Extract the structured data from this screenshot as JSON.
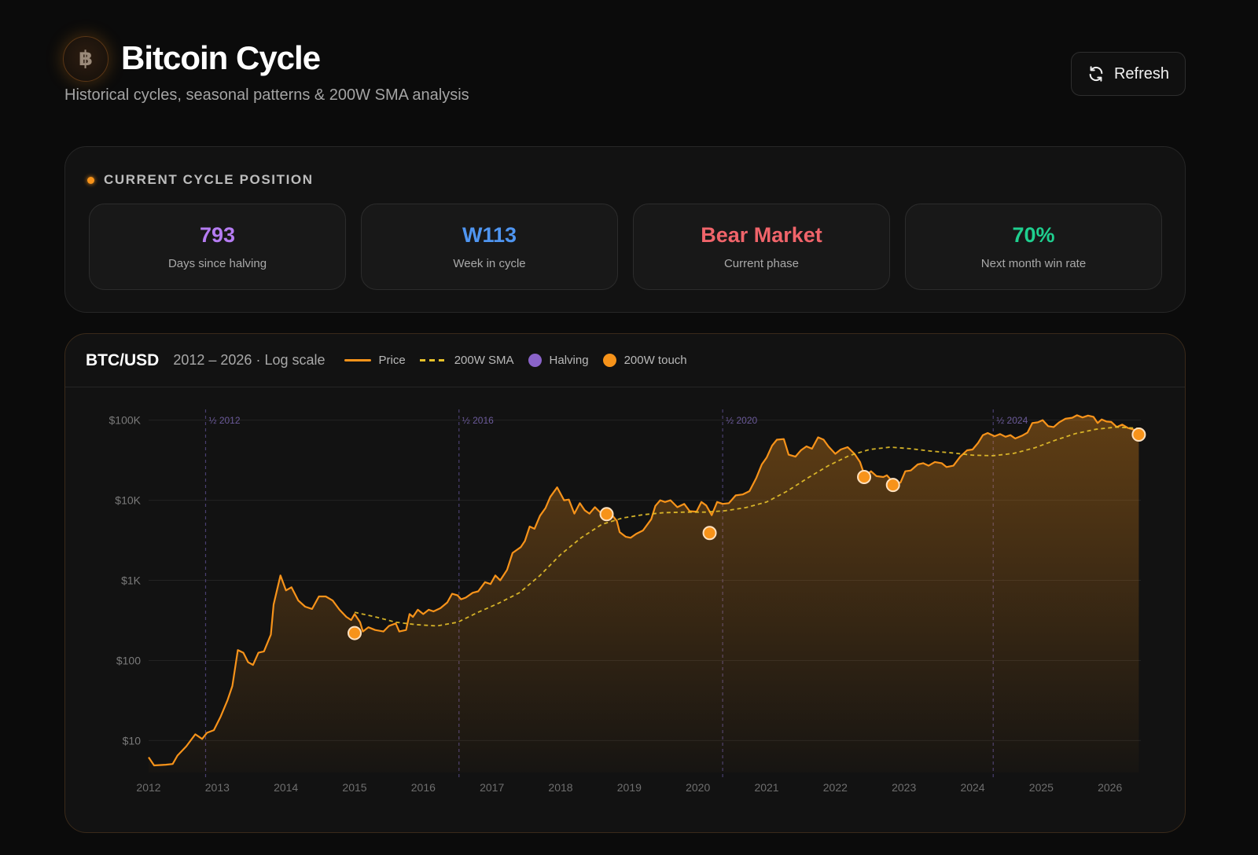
{
  "header": {
    "logo_glyph": "฿",
    "title": "Bitcoin Cycle",
    "subtitle": "Historical cycles, seasonal patterns & 200W SMA analysis",
    "refresh_label": "Refresh",
    "refresh_icon": "refresh-icon"
  },
  "cycle": {
    "title": "CURRENT CYCLE POSITION",
    "cards": [
      {
        "value": "793",
        "label": "Days since halving",
        "color": "#b57cf2"
      },
      {
        "value": "W113",
        "label": "Week in cycle",
        "color": "#4f95f0"
      },
      {
        "value": "Bear Market",
        "label": "Current phase",
        "color": "#f0646a"
      },
      {
        "value": "70%",
        "label": "Next month win rate",
        "color": "#1fcf8f"
      }
    ]
  },
  "chart_panel": {
    "pair": "BTC/USD",
    "range": "2012 – 2026 · Log scale",
    "legend": {
      "price": "Price",
      "sma": "200W SMA",
      "halving": "Halving",
      "touch": "200W touch"
    }
  },
  "colors": {
    "price": "#f7931a",
    "sma": "#e6c12a",
    "halving": "#8a63c9",
    "touch": "#f7931a"
  },
  "chart_data": {
    "type": "line",
    "title": "BTC/USD",
    "scale": "log",
    "grid": true,
    "legend_position": "top-left",
    "xlim": [
      2012.0,
      2026.45
    ],
    "ylim": [
      4,
      130000
    ],
    "x_ticks": [
      "2012",
      "2013",
      "2014",
      "2015",
      "2016",
      "2017",
      "2018",
      "2019",
      "2020",
      "2021",
      "2022",
      "2023",
      "2024",
      "2025",
      "2026"
    ],
    "y_ticks": [
      {
        "value": 100000,
        "label": "$100K"
      },
      {
        "value": 10000,
        "label": "$10K"
      },
      {
        "value": 1000,
        "label": "$1K"
      },
      {
        "value": 100,
        "label": "$100"
      },
      {
        "value": 10,
        "label": "$10"
      }
    ],
    "halvings": [
      {
        "x": 2012.83,
        "label": "½ 2012"
      },
      {
        "x": 2016.52,
        "label": "½ 2016"
      },
      {
        "x": 2020.36,
        "label": "½ 2020"
      },
      {
        "x": 2024.3,
        "label": "½ 2024"
      }
    ],
    "series": [
      {
        "name": "Price",
        "points": [
          [
            2012.0,
            6.2
          ],
          [
            2012.08,
            4.9
          ],
          [
            2012.25,
            5.0
          ],
          [
            2012.35,
            5.1
          ],
          [
            2012.42,
            6.5
          ],
          [
            2012.55,
            8.5
          ],
          [
            2012.68,
            12
          ],
          [
            2012.78,
            10.5
          ],
          [
            2012.85,
            12.5
          ],
          [
            2012.95,
            13.5
          ],
          [
            2013.05,
            20
          ],
          [
            2013.15,
            32
          ],
          [
            2013.22,
            48
          ],
          [
            2013.3,
            135
          ],
          [
            2013.38,
            125
          ],
          [
            2013.45,
            95
          ],
          [
            2013.52,
            88
          ],
          [
            2013.6,
            125
          ],
          [
            2013.68,
            130
          ],
          [
            2013.78,
            210
          ],
          [
            2013.82,
            500
          ],
          [
            2013.92,
            1150
          ],
          [
            2014.0,
            750
          ],
          [
            2014.08,
            820
          ],
          [
            2014.18,
            560
          ],
          [
            2014.28,
            470
          ],
          [
            2014.38,
            440
          ],
          [
            2014.48,
            630
          ],
          [
            2014.58,
            630
          ],
          [
            2014.68,
            560
          ],
          [
            2014.78,
            430
          ],
          [
            2014.88,
            350
          ],
          [
            2014.95,
            320
          ],
          [
            2015.0,
            380
          ],
          [
            2015.08,
            300
          ],
          [
            2015.12,
            230
          ],
          [
            2015.2,
            260
          ],
          [
            2015.3,
            240
          ],
          [
            2015.42,
            230
          ],
          [
            2015.5,
            270
          ],
          [
            2015.6,
            290
          ],
          [
            2015.65,
            230
          ],
          [
            2015.75,
            240
          ],
          [
            2015.8,
            380
          ],
          [
            2015.85,
            350
          ],
          [
            2015.92,
            430
          ],
          [
            2016.0,
            380
          ],
          [
            2016.08,
            430
          ],
          [
            2016.15,
            410
          ],
          [
            2016.25,
            450
          ],
          [
            2016.35,
            530
          ],
          [
            2016.42,
            680
          ],
          [
            2016.5,
            650
          ],
          [
            2016.55,
            580
          ],
          [
            2016.62,
            610
          ],
          [
            2016.72,
            700
          ],
          [
            2016.8,
            730
          ],
          [
            2016.9,
            950
          ],
          [
            2016.98,
            900
          ],
          [
            2017.05,
            1150
          ],
          [
            2017.12,
            1000
          ],
          [
            2017.22,
            1350
          ],
          [
            2017.3,
            2200
          ],
          [
            2017.42,
            2600
          ],
          [
            2017.48,
            3100
          ],
          [
            2017.55,
            4700
          ],
          [
            2017.62,
            4400
          ],
          [
            2017.7,
            6400
          ],
          [
            2017.78,
            8000
          ],
          [
            2017.85,
            11000
          ],
          [
            2017.95,
            14500
          ],
          [
            2018.05,
            10000
          ],
          [
            2018.12,
            10200
          ],
          [
            2018.2,
            6800
          ],
          [
            2018.28,
            9200
          ],
          [
            2018.35,
            7500
          ],
          [
            2018.42,
            6800
          ],
          [
            2018.5,
            8200
          ],
          [
            2018.58,
            7000
          ],
          [
            2018.65,
            6700
          ],
          [
            2018.75,
            6500
          ],
          [
            2018.82,
            5500
          ],
          [
            2018.86,
            4000
          ],
          [
            2018.95,
            3500
          ],
          [
            2019.02,
            3400
          ],
          [
            2019.1,
            3800
          ],
          [
            2019.2,
            4200
          ],
          [
            2019.32,
            5800
          ],
          [
            2019.38,
            8500
          ],
          [
            2019.45,
            10000
          ],
          [
            2019.52,
            9500
          ],
          [
            2019.6,
            10000
          ],
          [
            2019.7,
            8200
          ],
          [
            2019.8,
            9000
          ],
          [
            2019.88,
            7300
          ],
          [
            2019.98,
            7200
          ],
          [
            2020.05,
            9500
          ],
          [
            2020.12,
            8600
          ],
          [
            2020.2,
            6500
          ],
          [
            2020.28,
            9500
          ],
          [
            2020.36,
            9000
          ],
          [
            2020.45,
            9200
          ],
          [
            2020.55,
            11500
          ],
          [
            2020.65,
            11800
          ],
          [
            2020.75,
            13000
          ],
          [
            2020.85,
            19000
          ],
          [
            2020.93,
            28000
          ],
          [
            2021.0,
            34000
          ],
          [
            2021.08,
            48000
          ],
          [
            2021.15,
            57000
          ],
          [
            2021.25,
            58000
          ],
          [
            2021.32,
            37000
          ],
          [
            2021.42,
            35000
          ],
          [
            2021.5,
            42000
          ],
          [
            2021.58,
            47000
          ],
          [
            2021.66,
            44000
          ],
          [
            2021.75,
            61000
          ],
          [
            2021.83,
            57000
          ],
          [
            2021.9,
            47000
          ],
          [
            2022.0,
            38000
          ],
          [
            2022.08,
            43000
          ],
          [
            2022.18,
            46000
          ],
          [
            2022.28,
            38000
          ],
          [
            2022.36,
            30000
          ],
          [
            2022.43,
            20000
          ],
          [
            2022.52,
            23000
          ],
          [
            2022.6,
            20000
          ],
          [
            2022.7,
            19500
          ],
          [
            2022.75,
            20500
          ],
          [
            2022.85,
            16500
          ],
          [
            2022.95,
            16600
          ],
          [
            2023.02,
            23000
          ],
          [
            2023.1,
            23500
          ],
          [
            2023.2,
            28000
          ],
          [
            2023.28,
            29000
          ],
          [
            2023.36,
            27000
          ],
          [
            2023.45,
            30000
          ],
          [
            2023.55,
            29000
          ],
          [
            2023.62,
            26000
          ],
          [
            2023.72,
            27000
          ],
          [
            2023.82,
            35000
          ],
          [
            2023.92,
            42000
          ],
          [
            2024.0,
            43000
          ],
          [
            2024.08,
            52000
          ],
          [
            2024.15,
            65000
          ],
          [
            2024.22,
            69000
          ],
          [
            2024.32,
            63000
          ],
          [
            2024.4,
            67000
          ],
          [
            2024.48,
            62000
          ],
          [
            2024.55,
            65000
          ],
          [
            2024.62,
            59000
          ],
          [
            2024.72,
            64000
          ],
          [
            2024.8,
            70000
          ],
          [
            2024.87,
            92000
          ],
          [
            2024.95,
            94000
          ],
          [
            2025.02,
            100000
          ],
          [
            2025.1,
            84000
          ],
          [
            2025.18,
            82000
          ],
          [
            2025.26,
            94000
          ],
          [
            2025.35,
            104000
          ],
          [
            2025.45,
            107000
          ],
          [
            2025.52,
            115000
          ],
          [
            2025.6,
            108000
          ],
          [
            2025.68,
            114000
          ],
          [
            2025.76,
            110000
          ],
          [
            2025.82,
            92000
          ],
          [
            2025.88,
            102000
          ],
          [
            2025.95,
            96000
          ],
          [
            2026.02,
            95000
          ],
          [
            2026.1,
            82000
          ],
          [
            2026.18,
            88000
          ],
          [
            2026.26,
            80000
          ],
          [
            2026.35,
            76000
          ],
          [
            2026.42,
            68000
          ]
        ]
      },
      {
        "name": "200W SMA",
        "points": [
          [
            2015.0,
            400
          ],
          [
            2015.3,
            350
          ],
          [
            2015.6,
            300
          ],
          [
            2015.9,
            280
          ],
          [
            2016.2,
            270
          ],
          [
            2016.5,
            300
          ],
          [
            2016.8,
            400
          ],
          [
            2017.1,
            520
          ],
          [
            2017.4,
            700
          ],
          [
            2017.7,
            1150
          ],
          [
            2018.0,
            2100
          ],
          [
            2018.3,
            3400
          ],
          [
            2018.6,
            5000
          ],
          [
            2018.9,
            6000
          ],
          [
            2019.2,
            6600
          ],
          [
            2019.5,
            7000
          ],
          [
            2019.8,
            7100
          ],
          [
            2020.1,
            7100
          ],
          [
            2020.4,
            7400
          ],
          [
            2020.7,
            8100
          ],
          [
            2021.0,
            9500
          ],
          [
            2021.3,
            13000
          ],
          [
            2021.6,
            19000
          ],
          [
            2021.9,
            27000
          ],
          [
            2022.2,
            36000
          ],
          [
            2022.5,
            43000
          ],
          [
            2022.8,
            46000
          ],
          [
            2023.1,
            44000
          ],
          [
            2023.4,
            41000
          ],
          [
            2023.7,
            39000
          ],
          [
            2024.0,
            36500
          ],
          [
            2024.3,
            36000
          ],
          [
            2024.6,
            38500
          ],
          [
            2024.9,
            45000
          ],
          [
            2025.2,
            56000
          ],
          [
            2025.5,
            68000
          ],
          [
            2025.8,
            77000
          ],
          [
            2026.1,
            82000
          ],
          [
            2026.42,
            79000
          ]
        ]
      }
    ],
    "touches": [
      [
        2015.0,
        220
      ],
      [
        2018.67,
        6700
      ],
      [
        2020.17,
        3900
      ],
      [
        2022.42,
        19500
      ],
      [
        2022.84,
        15500
      ],
      [
        2026.42,
        66000
      ]
    ]
  }
}
